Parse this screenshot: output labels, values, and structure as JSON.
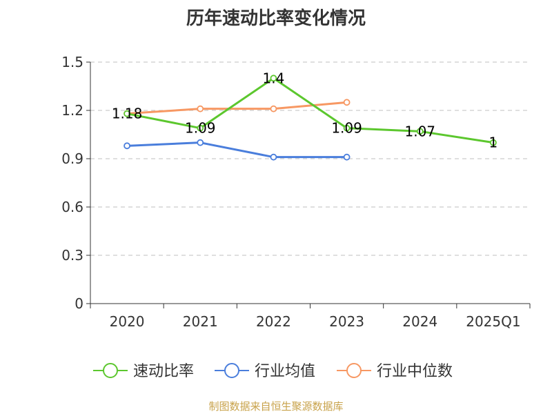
{
  "chart_data": {
    "type": "line",
    "title": "历年速动比率变化情况",
    "categories": [
      "2020",
      "2021",
      "2022",
      "2023",
      "2024",
      "2025Q1"
    ],
    "ylim": [
      0,
      1.5
    ],
    "yticks": [
      "0",
      "0.3",
      "0.6",
      "0.9",
      "1.2",
      "1.5"
    ],
    "grid": true,
    "legend_position": "bottom",
    "series": [
      {
        "name": "速动比率",
        "color": "#5cc72e",
        "values": [
          1.18,
          1.09,
          1.4,
          1.09,
          1.07,
          1.0
        ],
        "labels": [
          "1.18",
          "1.09",
          "1.4",
          "1.09",
          "1.07",
          "1"
        ]
      },
      {
        "name": "行业均值",
        "color": "#4a7edc",
        "values": [
          0.98,
          1.0,
          0.91,
          0.91,
          null,
          null
        ]
      },
      {
        "name": "行业中位数",
        "color": "#f79863",
        "values": [
          1.18,
          1.21,
          1.21,
          1.25,
          null,
          null
        ]
      }
    ]
  },
  "source": "制图数据来自恒生聚源数据库"
}
